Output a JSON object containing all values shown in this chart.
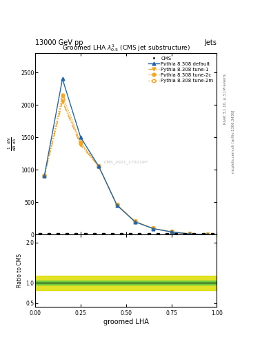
{
  "title": "Groomed LHA $\\lambda^{1}_{0.5}$ (CMS jet substructure)",
  "header_left": "13000 GeV pp",
  "header_right": "Jets",
  "watermark": "CMS_2021_1710197",
  "xlabel": "groomed LHA",
  "ylabel_main": "$\\frac{1}{\\mathrm{d}N}\\,\\frac{\\mathrm{d}N}{\\mathrm{d}\\lambda}$",
  "ylabel_ratio": "Ratio to CMS",
  "right_label_top": "Rivet 3.1.10, ≥ 3.1M events",
  "right_label_bottom": "mcplots.cern.ch [arXiv:1306.3436]",
  "pythia_x": [
    0.05,
    0.15,
    0.25,
    0.35,
    0.45,
    0.55,
    0.65,
    0.75,
    0.85,
    0.95
  ],
  "default_y": [
    900,
    2400,
    1500,
    1050,
    450,
    195,
    90,
    40,
    8,
    1.5
  ],
  "tune1_y": [
    900,
    2050,
    1380,
    1050,
    460,
    200,
    92,
    42,
    8,
    1.5
  ],
  "tune2c_y": [
    900,
    2150,
    1430,
    1050,
    460,
    200,
    92,
    42,
    8,
    1.5
  ],
  "tune2m_y": [
    900,
    2100,
    1410,
    1050,
    460,
    200,
    92,
    42,
    8,
    1.5
  ],
  "cms_x": [
    0.025,
    0.075,
    0.125,
    0.175,
    0.225,
    0.275,
    0.325,
    0.375,
    0.425,
    0.475,
    0.525,
    0.575,
    0.625,
    0.675,
    0.725,
    0.775,
    0.825,
    0.875,
    0.925,
    0.975
  ],
  "ylim_main": [
    0,
    2800
  ],
  "ylim_ratio": [
    0.4,
    2.2
  ],
  "color_default": "#2166ac",
  "color_tune": "#f5a623",
  "color_cms": "#111111",
  "color_band_green": "#66cc44",
  "color_band_yellow": "#dddd00",
  "ratio_green_band": [
    0.95,
    1.05
  ],
  "ratio_yellow_band": [
    0.82,
    1.18
  ],
  "background_color": "#ffffff"
}
